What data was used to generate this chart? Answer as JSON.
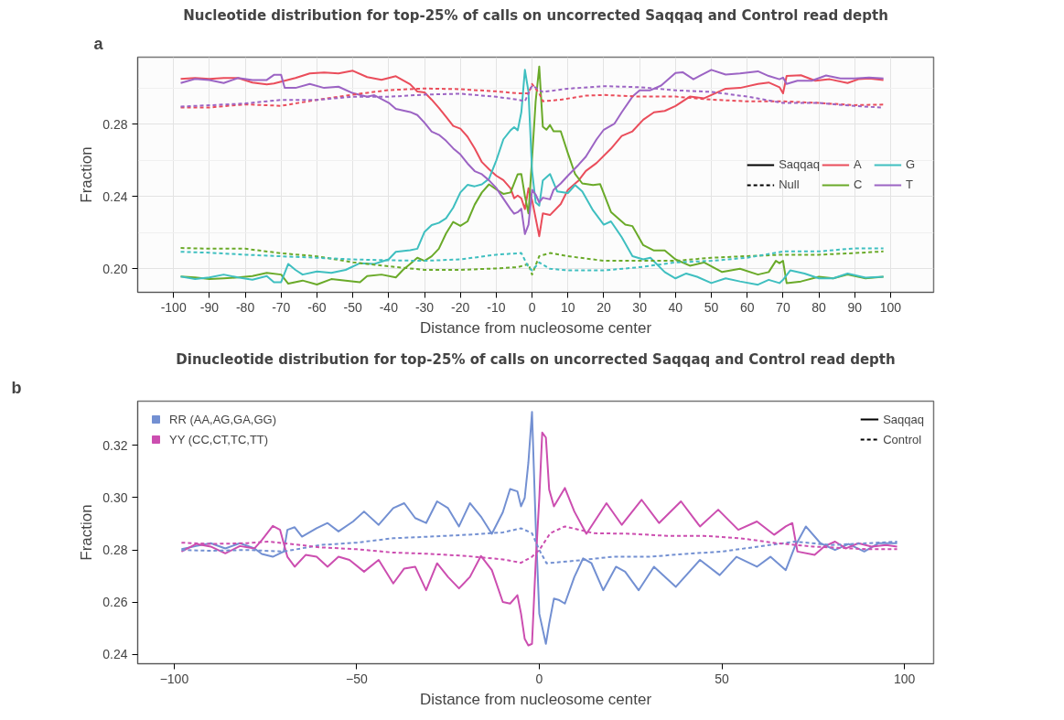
{
  "chart_data": [
    {
      "type": "line",
      "title": "Nucleotide distribution for top-25% of calls on uncorrected Saqqaq and Control read depth",
      "xlabel": "Distance from nucleosome center",
      "ylabel": "Fraction",
      "annotations": [
        "a",
        "Saqqaq",
        "Null"
      ],
      "xlim": [
        -110,
        112
      ],
      "ylim": [
        0.187,
        0.317
      ],
      "xticks": [
        -100,
        -90,
        -80,
        -70,
        -60,
        -50,
        -40,
        -30,
        -20,
        -10,
        0,
        10,
        20,
        30,
        40,
        50,
        60,
        70,
        80,
        90,
        100
      ],
      "yticks": [
        {
          "value": 0.2,
          "label": "0.20"
        },
        {
          "value": 0.24,
          "label": "0.24"
        },
        {
          "value": 0.28,
          "label": "0.28"
        }
      ],
      "grid": true,
      "legend": "right",
      "series": [
        {
          "name": "A",
          "color": "#ea4d5b",
          "line_style": "solid",
          "x": [
            -98,
            -94,
            -90,
            -86,
            -82,
            -78,
            -74,
            -72,
            -70,
            -66,
            -62,
            -58,
            -54,
            -50,
            -46,
            -42,
            -38,
            -34,
            -32,
            -30,
            -28,
            -26,
            -24,
            -22,
            -20,
            -18,
            -16,
            -14,
            -12,
            -10,
            -8,
            -6,
            -5,
            -4,
            -3,
            -2,
            -1,
            0,
            1,
            2,
            3,
            5,
            8,
            10,
            13,
            15,
            18,
            22,
            25,
            28,
            31,
            34,
            37,
            40,
            44,
            48,
            54,
            58,
            63,
            66,
            69,
            70,
            71,
            75,
            79,
            83,
            88,
            91,
            94,
            98
          ],
          "values": [
            0.305,
            0.3055,
            0.305,
            0.3055,
            0.3055,
            0.303,
            0.302,
            0.3025,
            0.3035,
            0.3055,
            0.308,
            0.3085,
            0.308,
            0.3095,
            0.306,
            0.3045,
            0.3065,
            0.302,
            0.298,
            0.2975,
            0.2935,
            0.289,
            0.284,
            0.279,
            0.2775,
            0.273,
            0.2665,
            0.259,
            0.255,
            0.2515,
            0.249,
            0.2445,
            0.239,
            0.2405,
            0.239,
            0.233,
            0.2445,
            0.238,
            0.228,
            0.218,
            0.2306,
            0.2297,
            0.2358,
            0.2437,
            0.2489,
            0.2541,
            0.2585,
            0.2664,
            0.2734,
            0.276,
            0.2824,
            0.2865,
            0.2873,
            0.29,
            0.2952,
            0.2943,
            0.2996,
            0.3,
            0.3022,
            0.303,
            0.3004,
            0.297,
            0.3066,
            0.307,
            0.304,
            0.3048,
            0.3027,
            0.3048,
            0.3052,
            0.3043
          ]
        },
        {
          "name": "C",
          "color": "#6aaa29",
          "line_style": "solid",
          "x": [
            -98,
            -94,
            -90,
            -86,
            -82,
            -78,
            -74,
            -70,
            -68,
            -64,
            -60,
            -56,
            -52,
            -48,
            -46,
            -42,
            -38,
            -36,
            -34,
            -32,
            -30,
            -28,
            -26,
            -24,
            -22,
            -20,
            -18,
            -16,
            -14,
            -12,
            -10,
            -8,
            -6,
            -4,
            -3,
            -2,
            -1,
            0,
            1,
            2,
            3,
            4,
            5,
            6,
            8,
            10,
            12,
            14,
            17,
            19,
            22,
            26,
            28,
            31,
            34,
            37,
            40,
            44,
            48,
            53,
            58,
            63,
            66,
            68,
            69,
            70,
            71,
            75,
            80,
            84,
            88,
            93,
            98
          ],
          "values": [
            0.1957,
            0.1952,
            0.1943,
            0.1947,
            0.1952,
            0.196,
            0.1977,
            0.1968,
            0.1918,
            0.1935,
            0.1913,
            0.1943,
            0.1935,
            0.1926,
            0.196,
            0.1968,
            0.1952,
            0.1994,
            0.2027,
            0.2061,
            0.2044,
            0.2069,
            0.2111,
            0.2195,
            0.2259,
            0.2237,
            0.2262,
            0.2355,
            0.2422,
            0.2467,
            0.2439,
            0.2414,
            0.2422,
            0.2523,
            0.2524,
            0.2402,
            0.2306,
            0.2611,
            0.2926,
            0.3118,
            0.2786,
            0.2769,
            0.2795,
            0.276,
            0.276,
            0.2638,
            0.2524,
            0.2472,
            0.2463,
            0.2468,
            0.2314,
            0.2244,
            0.2236,
            0.2131,
            0.2101,
            0.2101,
            0.2052,
            0.2017,
            0.2035,
            0.1982,
            0.2,
            0.1968,
            0.1982,
            0.2044,
            0.2031,
            0.2044,
            0.1921,
            0.193,
            0.1956,
            0.1947,
            0.1968,
            0.1947,
            0.1956
          ]
        },
        {
          "name": "G",
          "color": "#3fbfc0",
          "line_style": "solid",
          "x": [
            -98,
            -94,
            -90,
            -86,
            -82,
            -78,
            -74,
            -72,
            -70,
            -68,
            -66,
            -64,
            -60,
            -56,
            -52,
            -48,
            -44,
            -40,
            -38,
            -34,
            -32,
            -30,
            -28,
            -26,
            -24,
            -22,
            -20,
            -18,
            -16,
            -14,
            -12,
            -10,
            -8,
            -6,
            -5,
            -4,
            -3,
            -2,
            -1,
            0,
            1,
            2,
            3,
            5,
            7,
            10,
            12,
            14,
            17,
            20,
            22,
            25,
            28,
            31,
            33,
            37,
            40,
            43,
            46,
            50,
            54,
            58,
            63,
            66,
            69,
            70,
            72,
            76,
            80,
            84,
            88,
            93,
            98
          ],
          "values": [
            0.1957,
            0.1943,
            0.1952,
            0.1968,
            0.1952,
            0.194,
            0.196,
            0.1926,
            0.1926,
            0.2027,
            0.1994,
            0.1968,
            0.1985,
            0.1977,
            0.1994,
            0.2031,
            0.2027,
            0.2052,
            0.2094,
            0.2103,
            0.2111,
            0.2204,
            0.2242,
            0.2254,
            0.2279,
            0.2338,
            0.2422,
            0.2464,
            0.2456,
            0.2467,
            0.2498,
            0.2598,
            0.2716,
            0.2766,
            0.2783,
            0.2766,
            0.2865,
            0.31,
            0.2978,
            0.2541,
            0.2367,
            0.2349,
            0.2489,
            0.2524,
            0.2428,
            0.2419,
            0.2463,
            0.2428,
            0.2323,
            0.2244,
            0.2262,
            0.2175,
            0.207,
            0.2052,
            0.2061,
            0.1982,
            0.1947,
            0.1974,
            0.1956,
            0.1921,
            0.1947,
            0.193,
            0.1912,
            0.1939,
            0.1921,
            0.1939,
            0.1991,
            0.1974,
            0.1947,
            0.1947,
            0.1974,
            0.1951,
            0.1956
          ]
        },
        {
          "name": "T",
          "color": "#9c64c4",
          "line_style": "solid",
          "x": [
            -98,
            -94,
            -90,
            -86,
            -82,
            -78,
            -74,
            -72,
            -70,
            -69,
            -66,
            -62,
            -58,
            -54,
            -50,
            -46,
            -44,
            -40,
            -38,
            -34,
            -32,
            -30,
            -28,
            -26,
            -24,
            -22,
            -20,
            -18,
            -16,
            -14,
            -12,
            -10,
            -8,
            -6,
            -5,
            -4,
            -3,
            -2,
            -1,
            0,
            1,
            2,
            3,
            5,
            6,
            8,
            10,
            13,
            15,
            18,
            20,
            23,
            25,
            28,
            30,
            33,
            36,
            40,
            42,
            45,
            50,
            54,
            58,
            63,
            66,
            69,
            70,
            71,
            74,
            78,
            82,
            86,
            90,
            94,
            98
          ],
          "values": [
            0.3027,
            0.305,
            0.3044,
            0.3027,
            0.3055,
            0.3044,
            0.3044,
            0.3072,
            0.3072,
            0.3,
            0.3,
            0.3022,
            0.3,
            0.3007,
            0.2971,
            0.2951,
            0.296,
            0.2918,
            0.2884,
            0.2867,
            0.285,
            0.2808,
            0.2758,
            0.2741,
            0.2708,
            0.2666,
            0.2632,
            0.2582,
            0.254,
            0.2523,
            0.2489,
            0.2447,
            0.2388,
            0.233,
            0.2304,
            0.2313,
            0.2332,
            0.2192,
            0.2244,
            0.2437,
            0.241,
            0.2367,
            0.2393,
            0.2384,
            0.2437,
            0.2472,
            0.2515,
            0.2576,
            0.262,
            0.2716,
            0.2769,
            0.2803,
            0.2865,
            0.2952,
            0.2987,
            0.2987,
            0.3013,
            0.3083,
            0.3087,
            0.3048,
            0.31,
            0.3074,
            0.308,
            0.3092,
            0.3066,
            0.3048,
            0.3057,
            0.3022,
            0.304,
            0.304,
            0.3069,
            0.3052,
            0.3052,
            0.3057,
            0.3052
          ]
        },
        {
          "color": "#ea4d5b",
          "line_style": "dashed",
          "x": [
            -98,
            -90,
            -80,
            -70,
            -60,
            -50,
            -40,
            -30,
            -20,
            -10,
            -4,
            -1,
            0,
            2,
            3,
            8,
            15,
            20,
            30,
            40,
            50,
            60,
            70,
            80,
            90,
            98
          ],
          "values": [
            0.2892,
            0.2892,
            0.2909,
            0.2901,
            0.2934,
            0.2963,
            0.2988,
            0.2997,
            0.2993,
            0.2981,
            0.297,
            0.297,
            0.3022,
            0.297,
            0.2926,
            0.2935,
            0.2957,
            0.2961,
            0.2952,
            0.2952,
            0.2935,
            0.2926,
            0.2926,
            0.2917,
            0.2905,
            0.2908
          ]
        },
        {
          "color": "#6aaa29",
          "line_style": "dashed",
          "x": [
            -98,
            -90,
            -80,
            -70,
            -60,
            -50,
            -40,
            -30,
            -20,
            -10,
            -4,
            -1,
            0,
            2,
            5,
            10,
            20,
            30,
            40,
            50,
            60,
            70,
            80,
            90,
            98
          ],
          "values": [
            0.2115,
            0.2111,
            0.2111,
            0.2086,
            0.2069,
            0.2036,
            0.2014,
            0.1994,
            0.1994,
            0.2002,
            0.2009,
            0.2026,
            0.1968,
            0.207,
            0.2087,
            0.207,
            0.2044,
            0.2044,
            0.2044,
            0.2061,
            0.207,
            0.2078,
            0.2078,
            0.2087,
            0.2096
          ]
        },
        {
          "color": "#3fbfc0",
          "line_style": "dashed",
          "x": [
            -98,
            -90,
            -80,
            -70,
            -60,
            -50,
            -40,
            -30,
            -20,
            -10,
            -3,
            -1,
            0,
            2,
            5,
            10,
            20,
            30,
            40,
            50,
            60,
            70,
            80,
            90,
            98
          ],
          "values": [
            0.2094,
            0.2089,
            0.2078,
            0.2069,
            0.2061,
            0.2052,
            0.2047,
            0.2044,
            0.2052,
            0.2078,
            0.2087,
            0.2009,
            0.1991,
            0.2035,
            0.2,
            0.1991,
            0.1991,
            0.2009,
            0.2035,
            0.2044,
            0.2061,
            0.2096,
            0.2096,
            0.2113,
            0.2113
          ]
        },
        {
          "color": "#9c64c4",
          "line_style": "dashed",
          "x": [
            -98,
            -90,
            -80,
            -70,
            -60,
            -50,
            -40,
            -30,
            -20,
            -10,
            -4,
            -2,
            0,
            3,
            10,
            20,
            30,
            40,
            50,
            60,
            70,
            80,
            90,
            98
          ],
          "values": [
            0.2897,
            0.2904,
            0.2914,
            0.2934,
            0.2934,
            0.2951,
            0.2951,
            0.2963,
            0.2968,
            0.2951,
            0.2935,
            0.2926,
            0.3013,
            0.2978,
            0.2996,
            0.301,
            0.3004,
            0.2987,
            0.2978,
            0.2952,
            0.2917,
            0.2917,
            0.29,
            0.2891
          ]
        }
      ]
    },
    {
      "type": "line",
      "title": "Dinucleotide distribution for top-25% of calls on uncorrected Saqqaq and Control read depth",
      "xlabel": "Distance from nucleosome center",
      "ylabel": "Fraction",
      "annotations": [
        "b",
        "Saqqaq",
        "Control"
      ],
      "xlim": [
        -110,
        108
      ],
      "ylim": [
        0.2365,
        0.3369
      ],
      "xticks": [
        {
          "value": -100,
          "label": "−100"
        },
        {
          "value": -50,
          "label": "−50"
        },
        0,
        50,
        100
      ],
      "yticks": [
        {
          "value": 0.24,
          "label": "0.24"
        },
        {
          "value": 0.26,
          "label": "0.26"
        },
        {
          "value": 0.28,
          "label": "0.28"
        },
        {
          "value": 0.3,
          "label": "0.30"
        },
        {
          "value": 0.32,
          "label": "0.32"
        }
      ],
      "legend": "top left",
      "series": [
        {
          "name": "RR (AA,AG,GA,GG)",
          "color": "#7390d2",
          "line_style": "solid",
          "x": [
            -98,
            -94,
            -90,
            -86,
            -82,
            -78,
            -76,
            -73,
            -70,
            -69,
            -67,
            -65,
            -61,
            -58,
            -55,
            -51,
            -48,
            -44,
            -40,
            -37,
            -34,
            -31,
            -28,
            -25,
            -22,
            -19,
            -16,
            -13,
            -10,
            -8,
            -6,
            -5,
            -4,
            -3,
            -2,
            -1,
            0,
            1.8,
            2.7,
            4,
            5.5,
            7,
            9.6,
            12,
            14.3,
            17.5,
            21,
            23.5,
            27.2,
            31.4,
            37.4,
            44,
            49.4,
            54,
            59.6,
            63.3,
            67.5,
            70,
            73,
            77,
            81,
            84.7,
            89,
            93,
            98
          ],
          "values": [
            0.2803,
            0.2815,
            0.2826,
            0.2806,
            0.2826,
            0.2806,
            0.2785,
            0.2774,
            0.2794,
            0.2877,
            0.2887,
            0.2851,
            0.2883,
            0.2903,
            0.2871,
            0.2909,
            0.2947,
            0.2896,
            0.296,
            0.2979,
            0.2922,
            0.2903,
            0.2986,
            0.296,
            0.289,
            0.2979,
            0.2928,
            0.2862,
            0.2944,
            0.3033,
            0.3024,
            0.2967,
            0.2999,
            0.3133,
            0.3328,
            0.29,
            0.2556,
            0.2441,
            0.2518,
            0.2614,
            0.2608,
            0.2595,
            0.2697,
            0.2768,
            0.2749,
            0.2646,
            0.2736,
            0.2717,
            0.2646,
            0.2736,
            0.2659,
            0.2762,
            0.2704,
            0.2774,
            0.2736,
            0.2774,
            0.2723,
            0.2813,
            0.289,
            0.2826,
            0.28,
            0.2823,
            0.2794,
            0.2826,
            0.2826
          ]
        },
        {
          "name": "YY (CC,CT,TC,TT)",
          "color": "#cc4eb0",
          "line_style": "solid",
          "x": [
            -98,
            -94,
            -90,
            -86,
            -82,
            -78,
            -76,
            -73,
            -71,
            -69,
            -67,
            -64,
            -61,
            -58,
            -55,
            -52,
            -48,
            -44,
            -40,
            -37,
            -34,
            -31,
            -28,
            -25,
            -22,
            -19,
            -16,
            -13,
            -10,
            -8,
            -6,
            -5,
            -4,
            -3,
            -2,
            -1,
            0,
            0.8,
            1.8,
            2.7,
            4,
            7,
            9.6,
            12.9,
            18.4,
            22.6,
            28,
            32.8,
            38.8,
            44,
            49,
            54.5,
            59.6,
            64.3,
            67.5,
            69.3,
            70.7,
            75.4,
            78,
            81,
            84,
            87.4,
            91,
            95,
            98
          ],
          "values": [
            0.2794,
            0.2823,
            0.2813,
            0.2787,
            0.2815,
            0.2806,
            0.2838,
            0.2892,
            0.2877,
            0.2774,
            0.2736,
            0.2781,
            0.2774,
            0.2736,
            0.2774,
            0.2762,
            0.2717,
            0.2762,
            0.2672,
            0.2729,
            0.2736,
            0.2646,
            0.2749,
            0.2697,
            0.2653,
            0.2697,
            0.2777,
            0.2723,
            0.2601,
            0.2595,
            0.2627,
            0.2556,
            0.246,
            0.2435,
            0.2441,
            0.275,
            0.3,
            0.3249,
            0.323,
            0.3031,
            0.2967,
            0.3037,
            0.2947,
            0.2862,
            0.2979,
            0.2896,
            0.2992,
            0.2903,
            0.2986,
            0.289,
            0.2954,
            0.2877,
            0.2909,
            0.2858,
            0.289,
            0.2903,
            0.2794,
            0.2781,
            0.2813,
            0.2832,
            0.2806,
            0.2826,
            0.2813,
            0.2819,
            0.2813
          ]
        },
        {
          "color": "#7390d2",
          "line_style": "dashed",
          "x": [
            -98,
            -90,
            -80,
            -70,
            -60,
            -50,
            -40,
            -30,
            -20,
            -10,
            -5,
            -2,
            0,
            2,
            10,
            20,
            30,
            40,
            50,
            60,
            70,
            80,
            90,
            98
          ],
          "values": [
            0.28,
            0.2797,
            0.28,
            0.2794,
            0.2819,
            0.2828,
            0.2845,
            0.2851,
            0.2858,
            0.2867,
            0.2883,
            0.2864,
            0.28,
            0.2749,
            0.2759,
            0.2774,
            0.2774,
            0.2785,
            0.2794,
            0.2813,
            0.2832,
            0.2819,
            0.2826,
            0.2832
          ]
        },
        {
          "color": "#cc4eb0",
          "line_style": "dashed",
          "x": [
            -98,
            -90,
            -80,
            -74,
            -70,
            -60,
            -50,
            -40,
            -30,
            -20,
            -10,
            -5,
            -2,
            0,
            3,
            7,
            15,
            25,
            35,
            45,
            55,
            65,
            75,
            85,
            90,
            98
          ],
          "values": [
            0.2828,
            0.2823,
            0.2826,
            0.2832,
            0.2826,
            0.281,
            0.2803,
            0.279,
            0.2785,
            0.2777,
            0.2764,
            0.2751,
            0.2774,
            0.28,
            0.2864,
            0.289,
            0.2864,
            0.2862,
            0.2854,
            0.2854,
            0.2845,
            0.2826,
            0.2813,
            0.2806,
            0.2803,
            0.2803
          ]
        }
      ]
    }
  ]
}
